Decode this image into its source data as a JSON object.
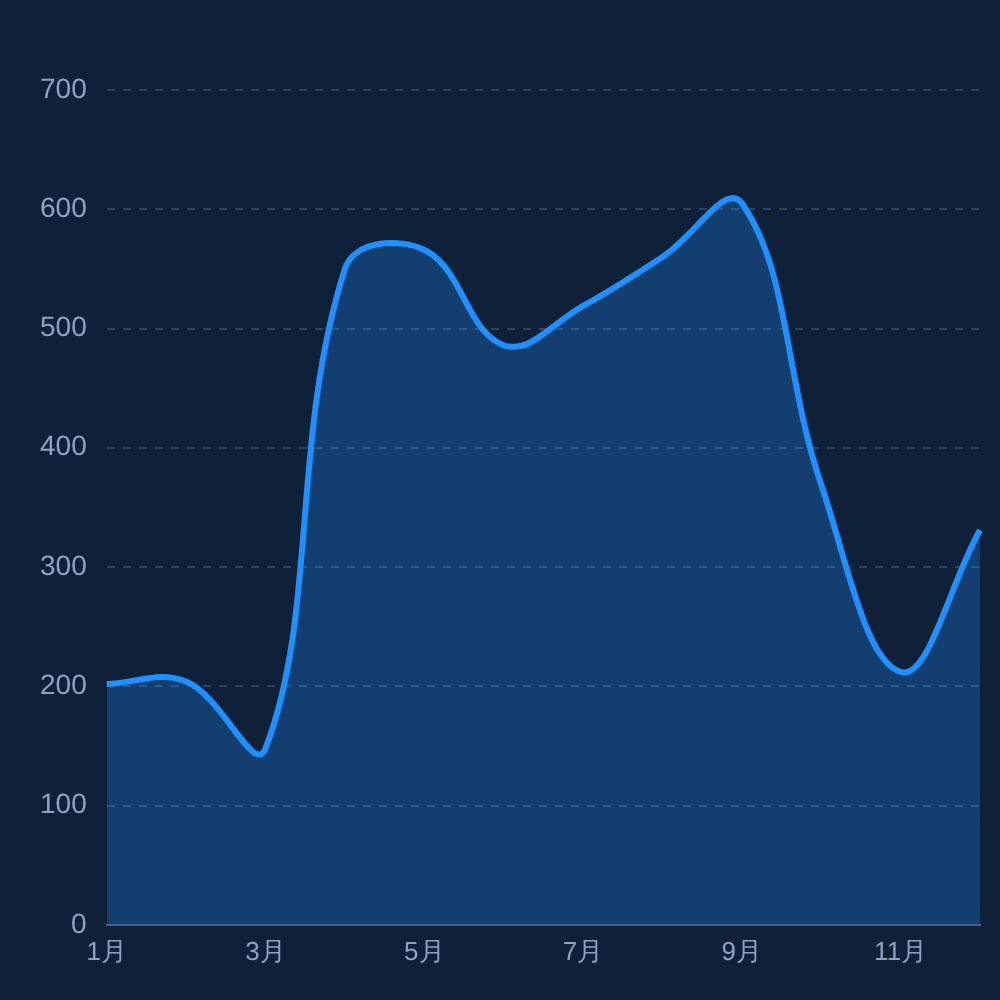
{
  "chart_data": {
    "type": "area",
    "categories": [
      "1月",
      null,
      "3月",
      null,
      "5月",
      null,
      "7月",
      null,
      "9月",
      null,
      "11月",
      null
    ],
    "series": [
      {
        "color": "#1e90ff",
        "values": [
          202,
          204,
          148,
          550,
          566,
          486,
          519,
          560,
          605,
          369,
          212,
          331
        ]
      }
    ],
    "ylim": [
      0,
      700
    ],
    "yticks": [
      0,
      100,
      200,
      300,
      400,
      500,
      600,
      700
    ],
    "grid": "y",
    "legend": false,
    "marker": "none",
    "line_style": "solid"
  }
}
